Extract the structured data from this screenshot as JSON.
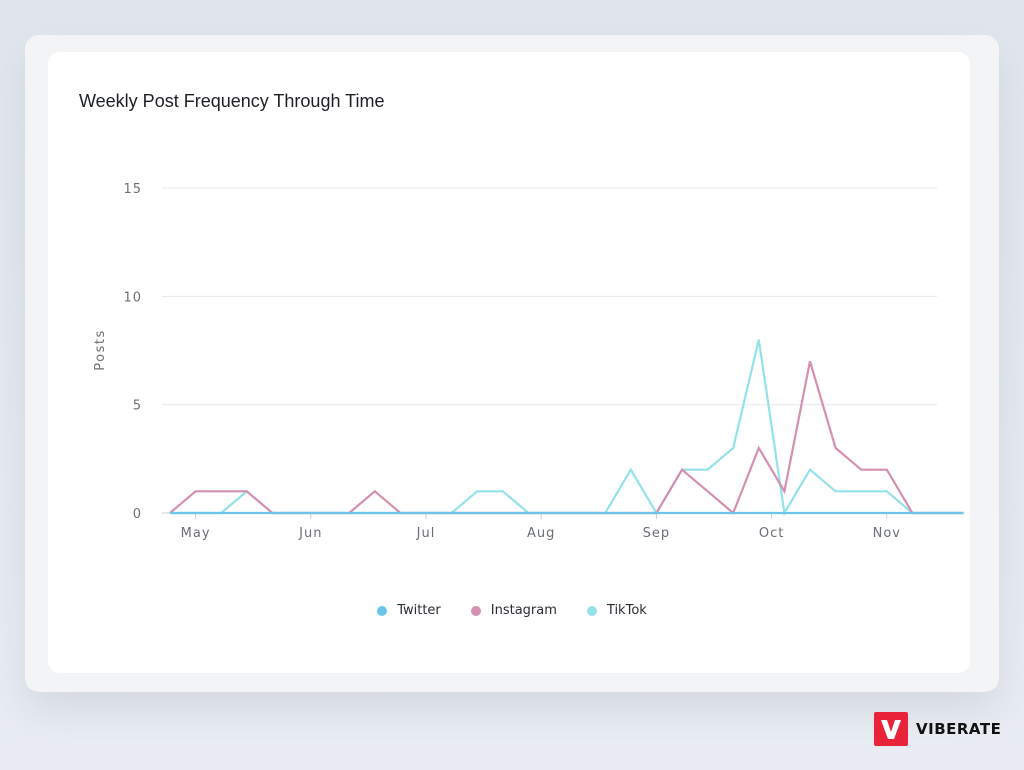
{
  "chart_data": {
    "type": "line",
    "title": "Weekly Post Frequency Through Time",
    "ylabel": "Posts",
    "xlabel": "",
    "ylim": [
      0,
      15
    ],
    "yticks": [
      0,
      5,
      10,
      15
    ],
    "x_month_labels": [
      "May",
      "Jun",
      "Jul",
      "Aug",
      "Sep",
      "Oct",
      "Nov"
    ],
    "x_month_positions": [
      1,
      5.5,
      10,
      14.5,
      19,
      23.5,
      28
    ],
    "x_weeks": 32,
    "grid": true,
    "legend_position": "bottom",
    "series": [
      {
        "name": "Twitter",
        "color": "#6cc5e8",
        "values": [
          0,
          0,
          0,
          0,
          0,
          0,
          0,
          0,
          0,
          0,
          0,
          0,
          0,
          0,
          0,
          0,
          0,
          0,
          0,
          0,
          0,
          0,
          0,
          0,
          0,
          0,
          0,
          0,
          0,
          0,
          0,
          0
        ]
      },
      {
        "name": "Instagram",
        "color": "#d58fb0",
        "values": [
          0,
          1,
          1,
          1,
          0,
          0,
          0,
          0,
          1,
          0,
          0,
          0,
          0,
          0,
          0,
          0,
          0,
          0,
          0,
          0,
          2,
          1,
          0,
          3,
          1,
          7,
          3,
          2,
          2,
          0,
          0,
          0
        ]
      },
      {
        "name": "TikTok",
        "color": "#93e2ea",
        "values": [
          0,
          0,
          0,
          1,
          0,
          0,
          0,
          0,
          0,
          0,
          0,
          0,
          1,
          1,
          0,
          0,
          0,
          0,
          2,
          0,
          2,
          2,
          3,
          8,
          0,
          2,
          1,
          1,
          1,
          0,
          0,
          0
        ]
      }
    ]
  },
  "brand": {
    "name": "VIBERATE"
  }
}
